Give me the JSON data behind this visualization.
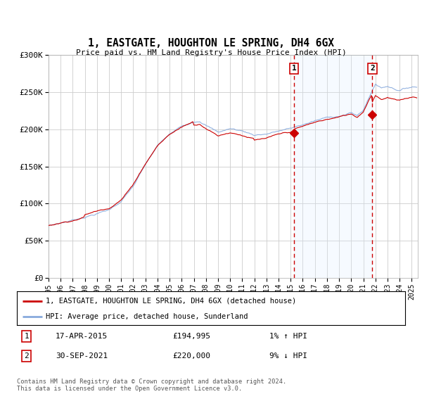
{
  "title": "1, EASTGATE, HOUGHTON LE SPRING, DH4 6GX",
  "subtitle": "Price paid vs. HM Land Registry's House Price Index (HPI)",
  "ylim": [
    0,
    300000
  ],
  "yticks": [
    0,
    50000,
    100000,
    150000,
    200000,
    250000,
    300000
  ],
  "ytick_labels": [
    "£0",
    "£50K",
    "£100K",
    "£150K",
    "£200K",
    "£250K",
    "£300K"
  ],
  "background_color": "#ffffff",
  "plot_bg_color": "#ffffff",
  "grid_color": "#cccccc",
  "red_line_color": "#cc0000",
  "blue_line_color": "#88aadd",
  "dashed_line_color": "#cc0000",
  "shade_color": "#ddeeff",
  "sale1_x": 2015.29,
  "sale1_y": 194995,
  "sale2_x": 2021.75,
  "sale2_y": 220000,
  "sale1_date": "17-APR-2015",
  "sale1_price": "£194,995",
  "sale1_hpi": "1% ↑ HPI",
  "sale2_date": "30-SEP-2021",
  "sale2_price": "£220,000",
  "sale2_hpi": "9% ↓ HPI",
  "legend_line1": "1, EASTGATE, HOUGHTON LE SPRING, DH4 6GX (detached house)",
  "legend_line2": "HPI: Average price, detached house, Sunderland",
  "footnote": "Contains HM Land Registry data © Crown copyright and database right 2024.\nThis data is licensed under the Open Government Licence v3.0.",
  "xmin": 1995.0,
  "xmax": 2025.5
}
